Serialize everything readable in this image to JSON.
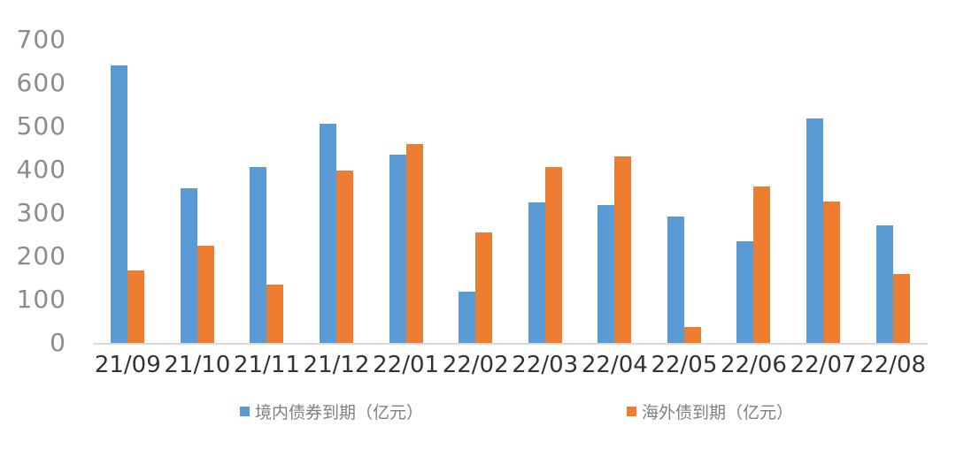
{
  "chart_data": {
    "type": "bar",
    "title": "",
    "categories": [
      "21/09",
      "21/10",
      "21/11",
      "21/12",
      "22/01",
      "22/02",
      "22/03",
      "22/04",
      "22/05",
      "22/06",
      "22/07",
      "22/08"
    ],
    "series": [
      {
        "id": "domestic",
        "name": "境内债券到期（亿元）",
        "color": "#5B9BD5",
        "values": [
          641,
          357,
          407,
          507,
          434,
          119,
          325,
          319,
          292,
          235,
          519,
          272
        ]
      },
      {
        "id": "overseas",
        "name": "海外债到期（亿元）",
        "color": "#ED7D31",
        "values": [
          168,
          224,
          135,
          397,
          460,
          256,
          407,
          431,
          37,
          362,
          327,
          160
        ]
      }
    ],
    "xlabel": "",
    "ylabel": "",
    "ylim": [
      0,
      700
    ],
    "yticks": [
      0,
      100,
      200,
      300,
      400,
      500,
      600,
      700
    ],
    "grid": false,
    "legend_position": "bottom",
    "axis_line_color": "#D9D9D9",
    "ytick_color": "#8C8C8C",
    "xtick_color": "#333333",
    "legend_text_color": "#7F7F7F"
  }
}
